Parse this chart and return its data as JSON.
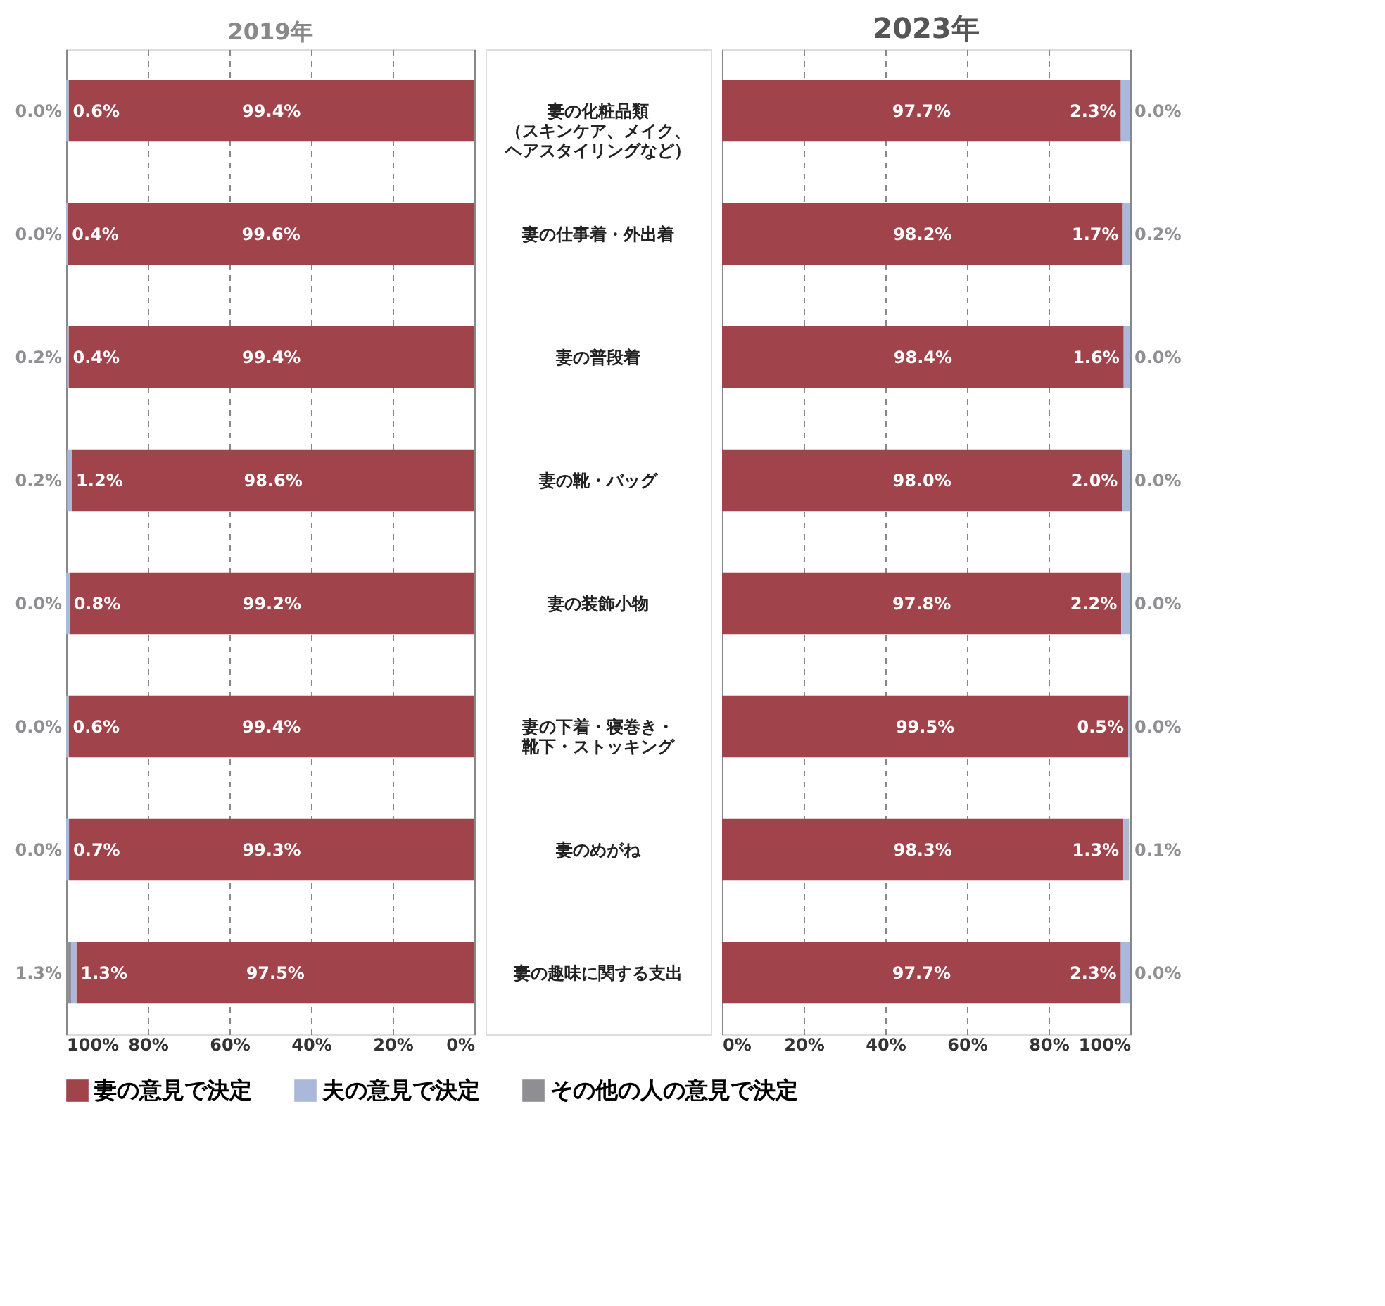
{
  "chart_data": [
    {
      "type": "bar",
      "title": "2019年",
      "orientation": "horizontal",
      "stacked": true,
      "legend": "bottom",
      "grid": "x",
      "categories": [
        "妻の化粧品類（スキンケア、メイク、ヘアスタイリングなど）",
        "妻の仕事着・外出着",
        "妻の普段着",
        "妻の靴・バッグ",
        "妻の装飾小物",
        "妻の下着・寝巻き・靴下・ストッキング",
        "妻のめがね",
        "妻の趣味に関する支出"
      ],
      "xlim": [
        100,
        0
      ],
      "xticks": [
        {
          "value": 100,
          "label": "100%"
        },
        {
          "value": 80,
          "label": "80%"
        },
        {
          "value": 60,
          "label": "60%"
        },
        {
          "value": 40,
          "label": "40%"
        },
        {
          "value": 20,
          "label": "20%"
        },
        {
          "value": 0,
          "label": "0%"
        }
      ],
      "series": [
        {
          "name": "妻の意見で決定",
          "color": "#a0434a",
          "values": [
            99.4,
            99.6,
            99.4,
            98.6,
            99.2,
            99.4,
            99.3,
            97.5
          ],
          "value_labels": [
            "99.4%",
            "99.6%",
            "99.4%",
            "98.6%",
            "99.2%",
            "99.4%",
            "99.3%",
            "97.5%"
          ]
        },
        {
          "name": "夫の意見で決定",
          "color": "#aab9d9",
          "values": [
            0.6,
            0.4,
            0.4,
            1.2,
            0.8,
            0.6,
            0.7,
            1.3
          ],
          "value_labels": [
            "0.6%",
            "0.4%",
            "0.4%",
            "1.2%",
            "0.8%",
            "0.6%",
            "0.7%",
            "1.3%"
          ]
        },
        {
          "name": "その他の人の意見で決定",
          "color": "#8f8f93",
          "values": [
            0.0,
            0.0,
            0.2,
            0.2,
            0.0,
            0.0,
            0.0,
            1.3
          ],
          "value_labels": [
            "0.0%",
            "0.0%",
            "0.2%",
            "0.2%",
            "0.0%",
            "0.0%",
            "0.0%",
            "1.3%"
          ]
        }
      ]
    },
    {
      "type": "bar",
      "title": "2023年",
      "orientation": "horizontal",
      "stacked": true,
      "legend": "bottom",
      "grid": "x",
      "tick_labels": "x",
      "categories": [
        "妻の化粧品類（スキンケア、メイク、ヘアスタイリングなど）",
        "妻の仕事着・外出着",
        "妻の普段着",
        "妻の靴・バッグ",
        "妻の装飾小物",
        "妻の下着・寝巻き・靴下・ストッキング",
        "妻のめがね",
        "妻の趣味に関する支出"
      ],
      "xlim": [
        0,
        100
      ],
      "xticks": [
        {
          "value": 0,
          "label": "0%"
        },
        {
          "value": 20,
          "label": "20%"
        },
        {
          "value": 40,
          "label": "40%"
        },
        {
          "value": 60,
          "label": "60%"
        },
        {
          "value": 80,
          "label": "80%"
        },
        {
          "value": 100,
          "label": "100%"
        }
      ],
      "series": [
        {
          "name": "妻の意見で決定",
          "color": "#a0434a",
          "values": [
            97.7,
            98.2,
            98.4,
            98.0,
            97.8,
            99.5,
            98.3,
            97.7
          ],
          "value_labels": [
            "97.7%",
            "98.2%",
            "98.4%",
            "98.0%",
            "97.8%",
            "99.5%",
            "98.3%",
            "97.7%"
          ]
        },
        {
          "name": "夫の意見で決定",
          "color": "#aab9d9",
          "values": [
            2.3,
            1.7,
            1.6,
            2.0,
            2.2,
            0.5,
            1.3,
            2.3
          ],
          "value_labels": [
            "2.3%",
            "1.7%",
            "1.6%",
            "2.0%",
            "2.2%",
            "0.5%",
            "1.3%",
            "2.3%"
          ]
        },
        {
          "name": "その他の人の意見で決定",
          "color": "#8f8f93",
          "values": [
            0.0,
            0.2,
            0.0,
            0.0,
            0.0,
            0.0,
            0.1,
            0.0
          ],
          "value_labels": [
            "0.0%",
            "0.2%",
            "0.0%",
            "0.0%",
            "0.0%",
            "0.0%",
            "0.1%",
            "0.0%"
          ]
        }
      ]
    }
  ]
}
